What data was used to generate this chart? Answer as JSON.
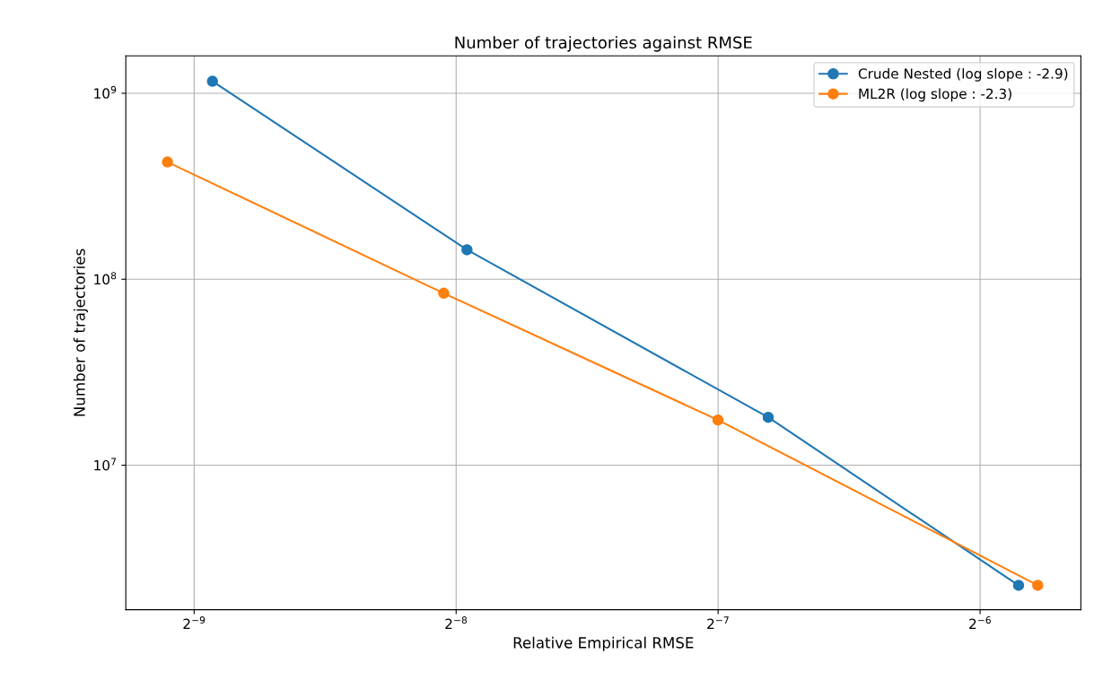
{
  "chart_data": {
    "type": "line",
    "title": "Number of trajectories against RMSE",
    "xlabel": "Relative Empirical RMSE",
    "ylabel": "Number of trajectories",
    "log": "xy",
    "grid": true,
    "legend": "top right",
    "marker": "circle",
    "line_style": "solid",
    "xlim": [
      0.00163,
      0.0204
    ],
    "ylim": [
      1670000,
      1590000000
    ],
    "xticks": [
      {
        "value": 0.001953125,
        "label": "2$^{−9}$"
      },
      {
        "value": 0.00390625,
        "label": "2$^{−8}$"
      },
      {
        "value": 0.0078125,
        "label": "2$^{−7}$"
      },
      {
        "value": 0.015625,
        "label": "2$^{−6}$"
      }
    ],
    "yticks": [
      {
        "value": 10000000,
        "label": "10$^{7}$"
      },
      {
        "value": 100000000,
        "label": "10$^{8}$"
      },
      {
        "value": 1000000000,
        "label": "10$^{9}$"
      }
    ],
    "series": [
      {
        "name": "Crude Nested (log slope : -2.9)",
        "color": "#1f77b4",
        "x": [
          0.00205,
          0.00402,
          0.00892,
          0.0173
        ],
        "values": [
          1160000000,
          144000000,
          18100000,
          2260000
        ]
      },
      {
        "name": "ML2R (log slope : -2.3)",
        "color": "#ff7f0e",
        "x": [
          0.00182,
          0.00378,
          0.00781,
          0.0182
        ],
        "values": [
          427000000,
          84100000,
          17500000,
          2260000
        ]
      }
    ]
  }
}
